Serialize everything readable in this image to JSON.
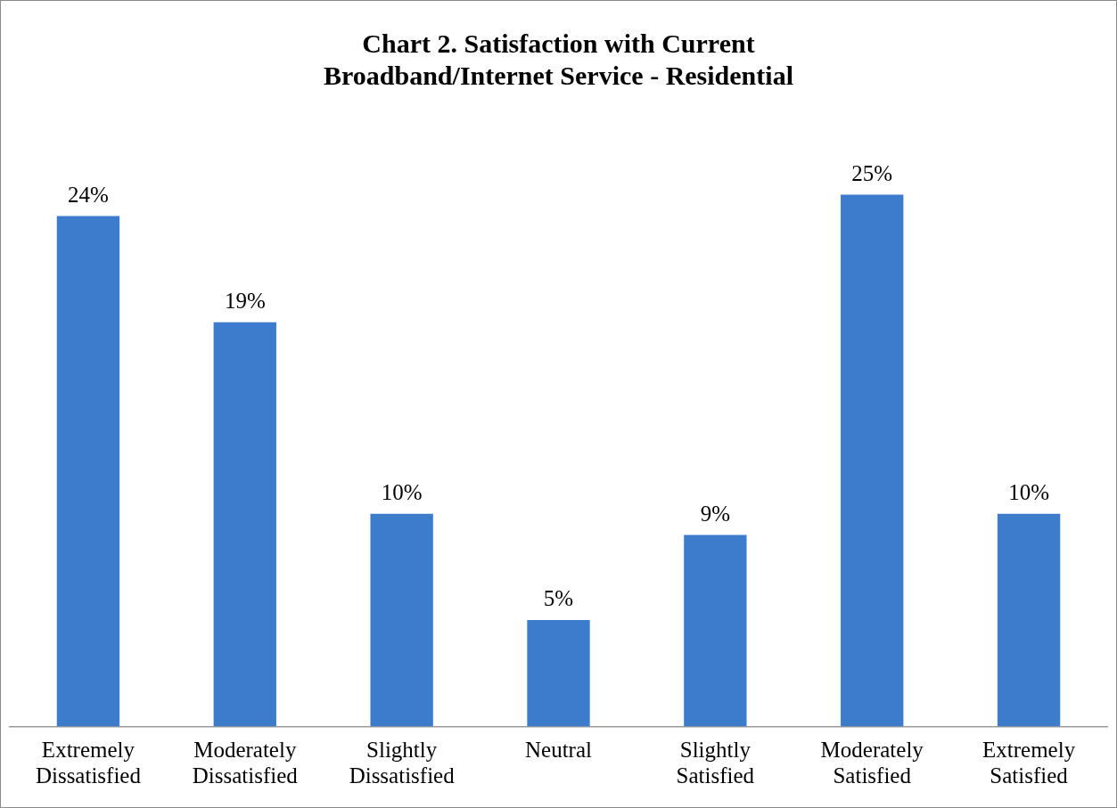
{
  "chart_data": {
    "type": "bar",
    "title": "Chart 2. Satisfaction with Current Broadband/Internet Service - Residential",
    "categories": [
      "Extremely Dissatisfied",
      "Moderately Dissatisfied",
      "Slightly Dissatisfied",
      "Neutral",
      "Slightly Satisfied",
      "Moderately Satisfied",
      "Extremely Satisfied"
    ],
    "values": [
      24,
      19,
      10,
      5,
      9,
      25,
      10
    ],
    "color": "#3d7ccc",
    "data_labels": true,
    "value_labels": [
      "24%",
      "19%",
      "10%",
      "5%",
      "9%",
      "25%",
      "10%"
    ],
    "tick_labels": "x",
    "grid": false,
    "legend": false
  }
}
